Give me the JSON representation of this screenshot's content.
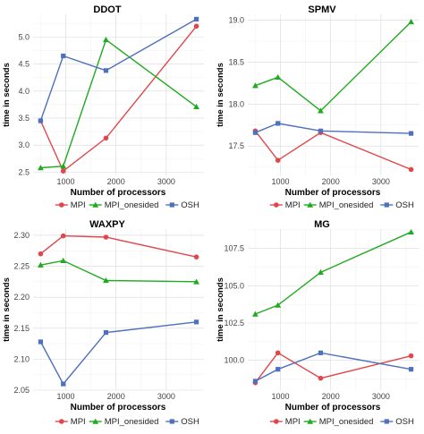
{
  "chart_data": [
    {
      "type": "line",
      "title": "DDOT",
      "xlabel": "Number of processors",
      "ylabel": "time in seconds",
      "x": [
        500,
        950,
        1800,
        3600
      ],
      "xlim": [
        350,
        3750
      ],
      "xticks": [
        1000,
        2000,
        3000
      ],
      "ylim": [
        2.44,
        5.42
      ],
      "yticks": [
        2.5,
        3.0,
        3.5,
        4.0,
        4.5,
        5.0
      ],
      "ytick_labels": [
        "2.5",
        "3.0",
        "3.5",
        "4.0",
        "4.5",
        "5.0"
      ],
      "grid": true,
      "legend": "bottom",
      "series": [
        {
          "name": "MPI",
          "values": [
            3.45,
            2.52,
            3.13,
            5.2
          ]
        },
        {
          "name": "MPI_onesided",
          "values": [
            2.58,
            2.61,
            4.95,
            3.71
          ]
        },
        {
          "name": "OSH",
          "values": [
            3.45,
            4.65,
            4.38,
            5.33
          ]
        }
      ]
    },
    {
      "type": "line",
      "title": "SPMV",
      "xlabel": "Number of processors",
      "ylabel": "time in seconds",
      "x": [
        500,
        950,
        1800,
        3600
      ],
      "xlim": [
        350,
        3750
      ],
      "xticks": [
        1000,
        2000,
        3000
      ],
      "ylim": [
        17.15,
        19.07
      ],
      "yticks": [
        17.5,
        18.0,
        18.5,
        19.0
      ],
      "ytick_labels": [
        "17.5",
        "18.0",
        "18.5",
        "19.0"
      ],
      "grid": true,
      "legend": "bottom",
      "series": [
        {
          "name": "MPI",
          "values": [
            17.68,
            17.33,
            17.66,
            17.22
          ]
        },
        {
          "name": "MPI_onesided",
          "values": [
            18.22,
            18.32,
            17.92,
            18.98
          ]
        },
        {
          "name": "OSH",
          "values": [
            17.66,
            17.77,
            17.68,
            17.65
          ]
        }
      ]
    },
    {
      "type": "line",
      "title": "WAXPY",
      "xlabel": "Number of processors",
      "ylabel": "time in seconds",
      "x": [
        500,
        950,
        1800,
        3600
      ],
      "xlim": [
        350,
        3750
      ],
      "xticks": [
        1000,
        2000,
        3000
      ],
      "ylim": [
        2.05,
        2.31
      ],
      "yticks": [
        2.05,
        2.1,
        2.15,
        2.2,
        2.25,
        2.3
      ],
      "ytick_labels": [
        "2.05",
        "2.10",
        "2.15",
        "2.20",
        "2.25",
        "2.30"
      ],
      "grid": true,
      "legend": "bottom",
      "series": [
        {
          "name": "MPI",
          "values": [
            2.27,
            2.299,
            2.297,
            2.265
          ]
        },
        {
          "name": "MPI_onesided",
          "values": [
            2.252,
            2.259,
            2.227,
            2.225
          ]
        },
        {
          "name": "OSH",
          "values": [
            2.128,
            2.06,
            2.143,
            2.16
          ]
        }
      ]
    },
    {
      "type": "line",
      "title": "MG",
      "xlabel": "Number of processors",
      "ylabel": "time in seconds",
      "x": [
        500,
        950,
        1800,
        3600
      ],
      "xlim": [
        350,
        3750
      ],
      "xticks": [
        1000,
        2000,
        3000
      ],
      "ylim": [
        98.0,
        108.8
      ],
      "yticks": [
        100.0,
        102.5,
        105.0,
        107.5
      ],
      "ytick_labels": [
        "100.0",
        "102.5",
        "105.0",
        "107.5"
      ],
      "grid": true,
      "legend": "bottom",
      "series": [
        {
          "name": "MPI",
          "values": [
            98.5,
            100.5,
            98.8,
            100.3
          ]
        },
        {
          "name": "MPI_onesided",
          "values": [
            103.1,
            103.7,
            105.9,
            108.6
          ]
        },
        {
          "name": "OSH",
          "values": [
            98.6,
            99.4,
            100.5,
            99.4
          ]
        }
      ]
    }
  ],
  "colors": {
    "MPI": "#e0474c",
    "MPI_onesided": "#1faa1f",
    "OSH": "#4f6fbf"
  },
  "markers": {
    "MPI": "circle",
    "MPI_onesided": "triangle",
    "OSH": "square"
  }
}
